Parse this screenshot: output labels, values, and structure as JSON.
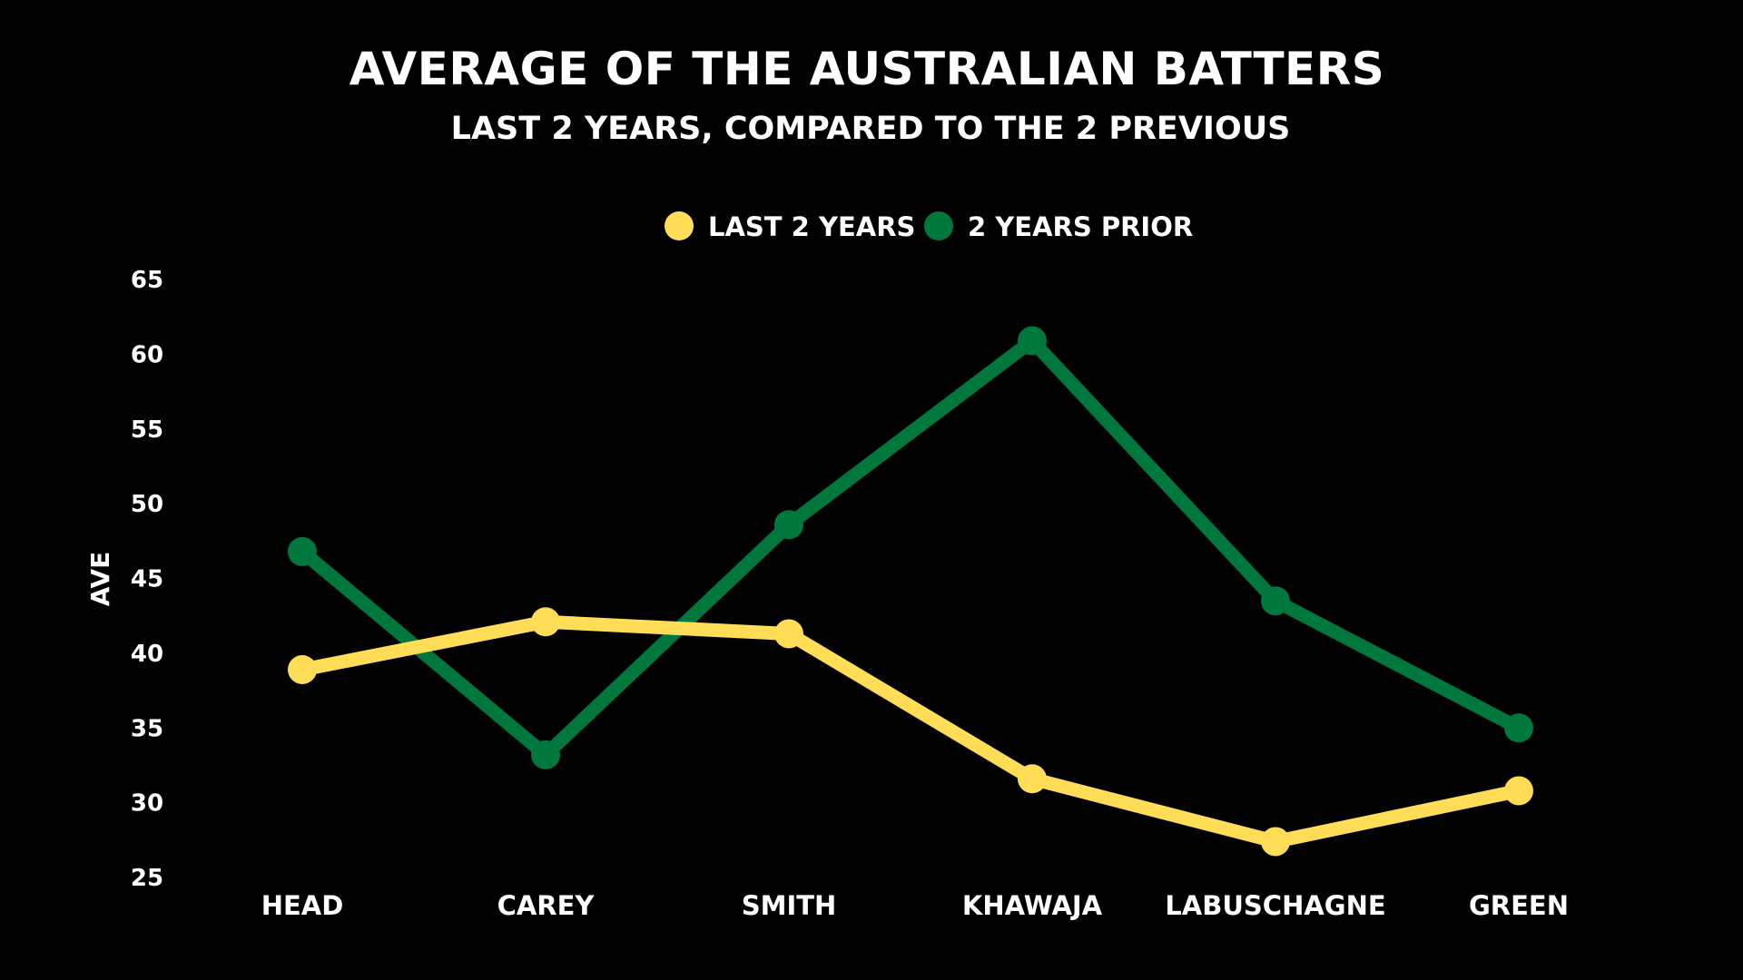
{
  "chart_data": {
    "type": "line",
    "title": "AVERAGE OF THE AUSTRALIAN BATTERS",
    "subtitle": "LAST 2 YEARS, COMPARED TO THE 2 PREVIOUS",
    "xlabel": "",
    "ylabel": "AVE",
    "categories": [
      "HEAD",
      "CAREY",
      "SMITH",
      "KHAWAJA",
      "LABUSCHAGNE",
      "GREEN"
    ],
    "yticks": [
      "65",
      "60",
      "55",
      "50",
      "45",
      "40",
      "35",
      "30",
      "25"
    ],
    "ylim": [
      25,
      65
    ],
    "grid": false,
    "legend_position": "top-center",
    "series": [
      {
        "name": "LAST 2 YEARS",
        "color": "#FFDD57",
        "values": [
          38.9,
          42.1,
          41.3,
          31.6,
          27.4,
          30.8
        ]
      },
      {
        "name": "2 YEARS PRIOR",
        "color": "#00773C",
        "values": [
          46.8,
          33.2,
          48.6,
          60.9,
          43.5,
          35.0
        ]
      }
    ]
  }
}
